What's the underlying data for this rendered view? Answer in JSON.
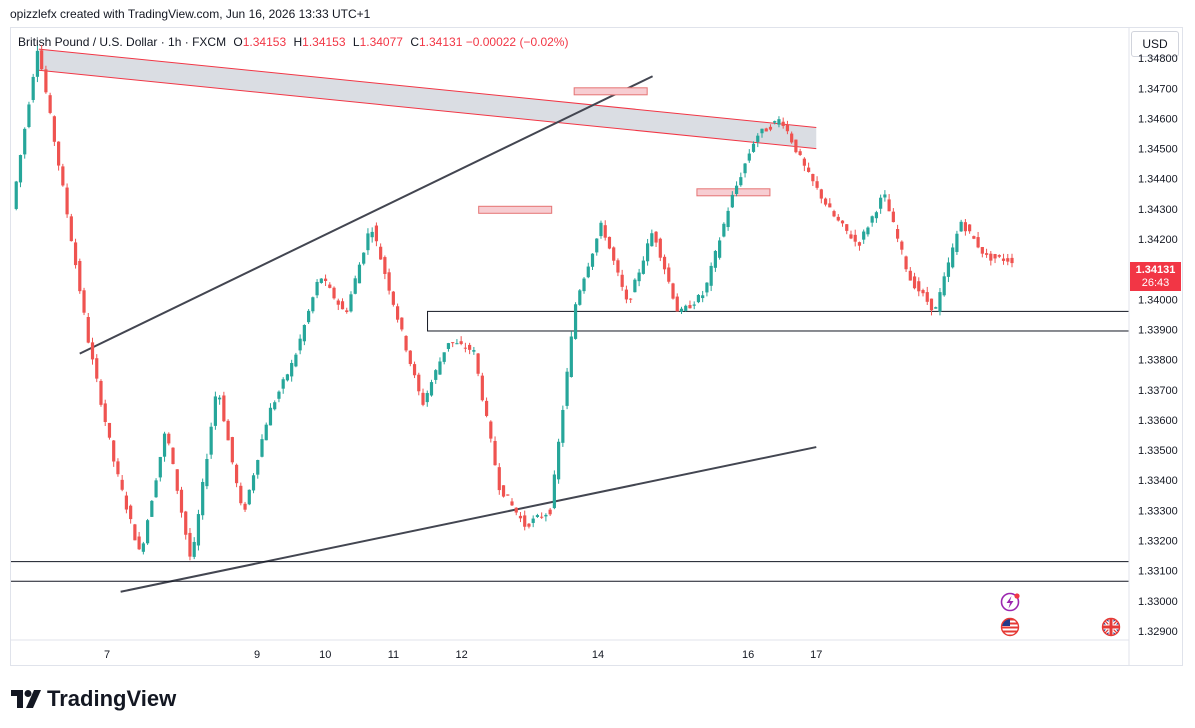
{
  "header": {
    "created_by": "opizzlefx created with TradingView.com, Jun 16, 2026 13:33 UTC+1"
  },
  "legend": {
    "symbol": "British Pound / U.S. Dollar · 1h · FXCM",
    "open_label": "O",
    "open": "1.34153",
    "high_label": "H",
    "high": "1.34153",
    "low_label": "L",
    "low": "1.34077",
    "close_label": "C",
    "close": "1.34131",
    "change": "−0.00022 (−0.02%)"
  },
  "currency_button": "USD",
  "price_tag": {
    "price": "1.34131",
    "countdown": "26:43"
  },
  "footer": {
    "brand": "TradingView"
  },
  "icons": [
    "lightning-event-icon",
    "us-flag-icon",
    "uk-flag-icon",
    "tradingview-logo-icon"
  ],
  "colors": {
    "up": "#26a69a",
    "down": "#ef5350",
    "trendline": "#434651",
    "channel": "#f23645",
    "channel_fill": "#d1d4dc",
    "box": "#131722"
  },
  "chart_data": {
    "type": "candlestick",
    "timeframe": "1h",
    "y_ticks": [
      "1.34800",
      "1.34700",
      "1.34600",
      "1.34500",
      "1.34400",
      "1.34300",
      "1.34200",
      "1.34100",
      "1.34000",
      "1.33900",
      "1.33800",
      "1.33700",
      "1.33600",
      "1.33500",
      "1.33400",
      "1.33300",
      "1.33200",
      "1.33100",
      "1.33000",
      "1.32900"
    ],
    "ylim": [
      1.3287,
      1.349
    ],
    "x_ticks": [
      "7",
      "9",
      "10",
      "11",
      "12",
      "14",
      "16",
      "17"
    ],
    "last_price": 1.34131,
    "key_points": [
      1.343,
      1.3484,
      1.3436,
      1.3385,
      1.3345,
      1.3315,
      1.3357,
      1.3312,
      1.3372,
      1.3328,
      1.3362,
      1.338,
      1.3408,
      1.3395,
      1.3425,
      1.3395,
      1.3365,
      1.3386,
      1.3383,
      1.3338,
      1.3325,
      1.333,
      1.34,
      1.3425,
      1.3398,
      1.3423,
      1.3395,
      1.3402,
      1.3432,
      1.3454,
      1.346,
      1.3442,
      1.3428,
      1.3418,
      1.3435,
      1.3407,
      1.3396,
      1.3426,
      1.3414,
      1.3413
    ],
    "drawings": {
      "resistance_channel": {
        "start": [
          6.0,
          1.3483
        ],
        "end": [
          17.4,
          1.3457
        ],
        "width": 0.0007
      },
      "rising_trendline_upper": {
        "start": [
          6.6,
          1.3382
        ],
        "end": [
          15.0,
          1.3474
        ]
      },
      "rising_trendline_lower": {
        "start": [
          7.2,
          1.3303
        ],
        "end": [
          17.4,
          1.3351
        ]
      },
      "support_box": {
        "low": 1.33895,
        "high": 1.3396
      },
      "lower_support_lines": [
        1.3313,
        1.33065
      ],
      "marker_boxes": [
        1.34297,
        1.3469,
        1.34355
      ]
    }
  }
}
